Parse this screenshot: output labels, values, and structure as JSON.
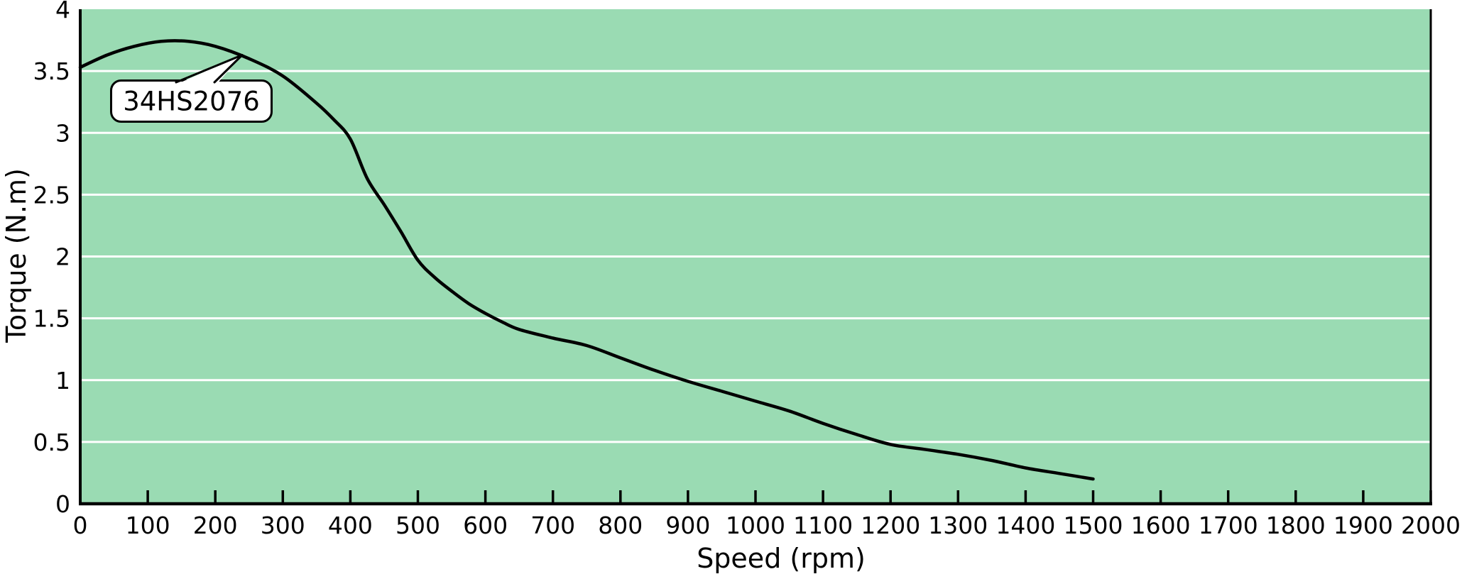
{
  "chart_data": {
    "type": "line",
    "title": "",
    "xlabel": "Speed (rpm)",
    "ylabel": "Torque  (N.m)",
    "xlim": [
      0,
      2000
    ],
    "ylim": [
      0,
      4
    ],
    "x_ticks": [
      0,
      100,
      200,
      300,
      400,
      500,
      600,
      700,
      800,
      900,
      1000,
      1100,
      1200,
      1300,
      1400,
      1500,
      1600,
      1700,
      1800,
      1900,
      2000
    ],
    "x_tick_labels": [
      "0",
      "100",
      "200",
      "300",
      "400",
      "500",
      "600",
      "700",
      "800",
      "900",
      "1000",
      "1100",
      "1200",
      "1300",
      "1400",
      "1500",
      "1600",
      "1700",
      "1800",
      "1900",
      "2000"
    ],
    "y_ticks": [
      0,
      0.5,
      1,
      1.5,
      2,
      2.5,
      3,
      3.5,
      4
    ],
    "y_tick_labels": [
      "0",
      "0.5",
      "1",
      "1.5",
      "2",
      "2.5",
      "3",
      "3.5",
      "4"
    ],
    "grid": "horizontal",
    "legend": "none",
    "colors": {
      "plot_background": "#9adbb3",
      "grid_line": "#ffffff",
      "curve": "#000000",
      "axis": "#000000",
      "callout_fill": "#ffffff",
      "callout_border": "#000000"
    },
    "annotation": {
      "label": "34HS2076",
      "target": {
        "x": 240,
        "y": 3.63
      }
    },
    "series": [
      {
        "name": "34HS2076",
        "points": [
          [
            0,
            3.53
          ],
          [
            40,
            3.63
          ],
          [
            80,
            3.7
          ],
          [
            120,
            3.74
          ],
          [
            160,
            3.74
          ],
          [
            200,
            3.7
          ],
          [
            250,
            3.6
          ],
          [
            300,
            3.46
          ],
          [
            350,
            3.24
          ],
          [
            375,
            3.11
          ],
          [
            400,
            2.95
          ],
          [
            425,
            2.63
          ],
          [
            450,
            2.42
          ],
          [
            475,
            2.2
          ],
          [
            500,
            1.97
          ],
          [
            525,
            1.83
          ],
          [
            550,
            1.72
          ],
          [
            575,
            1.62
          ],
          [
            600,
            1.54
          ],
          [
            625,
            1.47
          ],
          [
            650,
            1.41
          ],
          [
            700,
            1.34
          ],
          [
            750,
            1.28
          ],
          [
            800,
            1.18
          ],
          [
            850,
            1.08
          ],
          [
            900,
            0.99
          ],
          [
            950,
            0.91
          ],
          [
            1000,
            0.83
          ],
          [
            1050,
            0.75
          ],
          [
            1100,
            0.65
          ],
          [
            1150,
            0.56
          ],
          [
            1200,
            0.48
          ],
          [
            1250,
            0.44
          ],
          [
            1300,
            0.4
          ],
          [
            1350,
            0.35
          ],
          [
            1400,
            0.29
          ],
          [
            1450,
            0.245
          ],
          [
            1500,
            0.2
          ]
        ]
      }
    ]
  }
}
